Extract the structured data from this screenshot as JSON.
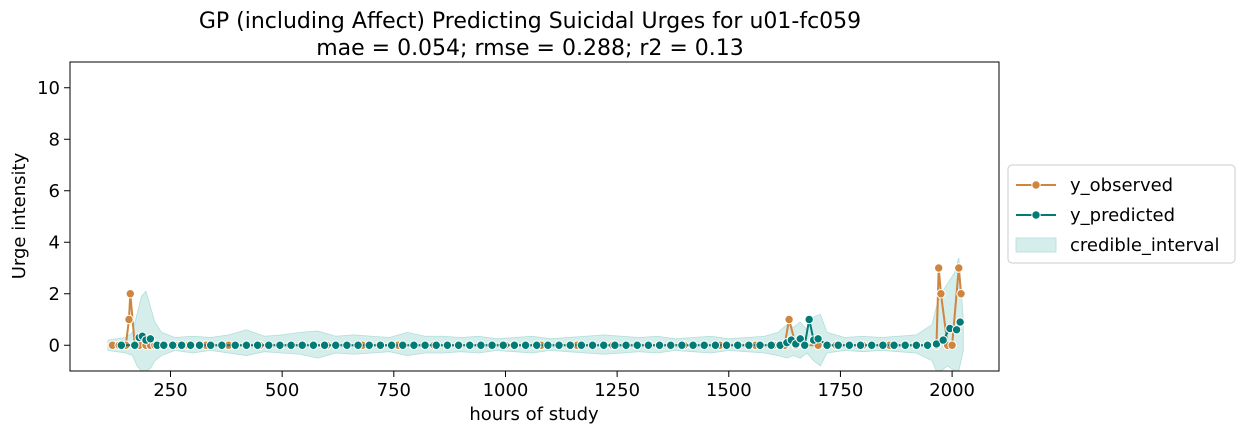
{
  "chart_data": {
    "type": "line",
    "title": "GP (including Affect) Predicting Suicidal Urges for u01-fc059",
    "subtitle": "mae = 0.054; rmse = 0.288; r2 = 0.13",
    "xlabel": "hours of study",
    "ylabel": "Urge intensity",
    "xlim": [
      25,
      2105
    ],
    "ylim": [
      -1,
      11
    ],
    "xticks": [
      250,
      500,
      750,
      1000,
      1250,
      1500,
      1750,
      2000
    ],
    "yticks": [
      0,
      2,
      4,
      6,
      8,
      10
    ],
    "grid": false,
    "legend_position": "right",
    "series": [
      {
        "name": "y_observed",
        "color": "#cd853f",
        "marker": "circle",
        "x": [
          120,
          135,
          150,
          157,
          160,
          170,
          180,
          195,
          205,
          215,
          230,
          260,
          290,
          330,
          380,
          450,
          520,
          600,
          680,
          760,
          840,
          920,
          1000,
          1080,
          1160,
          1240,
          1320,
          1400,
          1480,
          1560,
          1600,
          1625,
          1635,
          1650,
          1670,
          1700,
          1740,
          1800,
          1860,
          1920,
          1965,
          1970,
          1975,
          1990,
          2000,
          2015,
          2020
        ],
        "y": [
          0,
          0,
          0,
          1,
          2,
          0,
          0,
          0,
          0,
          0,
          0,
          0,
          0,
          0,
          0,
          0,
          0,
          0,
          0,
          0,
          0,
          0,
          0,
          0,
          0,
          0,
          0,
          0,
          0,
          0,
          0,
          0,
          1,
          0,
          0,
          0,
          0,
          0,
          0,
          0,
          0,
          3,
          2,
          0,
          0,
          3,
          2
        ]
      },
      {
        "name": "y_predicted",
        "color": "#007b76",
        "marker": "circle",
        "x": [
          140,
          170,
          180,
          187,
          195,
          205,
          220,
          235,
          255,
          275,
          295,
          315,
          340,
          365,
          395,
          420,
          445,
          470,
          495,
          520,
          545,
          570,
          595,
          620,
          645,
          670,
          695,
          720,
          745,
          770,
          795,
          820,
          845,
          870,
          895,
          920,
          945,
          970,
          995,
          1020,
          1045,
          1070,
          1095,
          1120,
          1145,
          1170,
          1195,
          1220,
          1245,
          1270,
          1295,
          1320,
          1345,
          1370,
          1395,
          1420,
          1445,
          1470,
          1495,
          1520,
          1545,
          1570,
          1595,
          1615,
          1630,
          1640,
          1650,
          1660,
          1670,
          1680,
          1690,
          1700,
          1720,
          1745,
          1770,
          1795,
          1820,
          1845,
          1870,
          1895,
          1920,
          1945,
          1965,
          1980,
          1995,
          2010,
          2018
        ],
        "y": [
          0,
          0,
          0.3,
          0.35,
          0.2,
          0.25,
          0,
          0,
          0,
          0,
          0,
          0,
          0,
          0,
          0,
          0,
          0,
          0,
          0,
          0,
          0,
          0,
          0,
          0,
          0,
          0,
          0,
          0,
          0,
          0,
          0,
          0,
          0,
          0,
          0,
          0,
          0,
          0,
          0,
          0,
          0,
          0,
          0,
          0,
          0,
          0,
          0,
          0,
          0,
          0,
          0,
          0,
          0,
          0,
          0,
          0,
          0,
          0,
          0,
          0,
          0,
          0,
          0,
          0,
          0.1,
          0.2,
          0.05,
          0.25,
          0,
          1,
          0.2,
          0.25,
          0,
          0,
          0,
          0,
          0,
          0,
          0,
          0,
          0,
          0,
          0.05,
          0.2,
          0.65,
          0.6,
          0.9
        ]
      },
      {
        "name": "credible_interval",
        "color": "#b2dfdb",
        "type": "band",
        "x": [
          110,
          150,
          165,
          175,
          185,
          195,
          205,
          215,
          230,
          260,
          300,
          340,
          380,
          420,
          460,
          500,
          540,
          580,
          620,
          660,
          700,
          740,
          780,
          820,
          860,
          900,
          940,
          980,
          1020,
          1060,
          1100,
          1140,
          1180,
          1220,
          1260,
          1300,
          1340,
          1380,
          1420,
          1460,
          1500,
          1540,
          1580,
          1610,
          1630,
          1645,
          1660,
          1675,
          1690,
          1705,
          1720,
          1760,
          1800,
          1840,
          1880,
          1920,
          1955,
          1965,
          1975,
          1990,
          2005,
          2015,
          2025
        ],
        "lower": [
          -0.2,
          -0.3,
          -0.4,
          -0.8,
          -1,
          -1,
          -0.9,
          -0.6,
          -0.4,
          -0.2,
          -0.3,
          -0.2,
          -0.3,
          -0.4,
          -0.25,
          -0.3,
          -0.35,
          -0.5,
          -0.3,
          -0.35,
          -0.3,
          -0.25,
          -0.4,
          -0.3,
          -0.3,
          -0.25,
          -0.3,
          -0.2,
          -0.25,
          -0.3,
          -0.2,
          -0.25,
          -0.3,
          -0.35,
          -0.3,
          -0.25,
          -0.3,
          -0.2,
          -0.25,
          -0.3,
          -0.2,
          -0.25,
          -0.3,
          -0.4,
          -0.5,
          -0.4,
          -0.5,
          -0.3,
          -0.6,
          -0.8,
          -0.3,
          -0.2,
          -0.25,
          -0.2,
          -0.25,
          -0.3,
          -0.6,
          -1,
          -1,
          -0.8,
          -1,
          -1,
          -0.2
        ],
        "upper": [
          0.2,
          0.3,
          0.5,
          1.2,
          1.9,
          2.1,
          1.5,
          0.9,
          0.5,
          0.3,
          0.35,
          0.3,
          0.4,
          0.6,
          0.35,
          0.4,
          0.5,
          0.55,
          0.35,
          0.4,
          0.35,
          0.3,
          0.5,
          0.35,
          0.35,
          0.3,
          0.35,
          0.25,
          0.3,
          0.35,
          0.25,
          0.3,
          0.35,
          0.4,
          0.35,
          0.3,
          0.35,
          0.25,
          0.3,
          0.35,
          0.25,
          0.3,
          0.35,
          0.5,
          0.8,
          0.7,
          0.9,
          0.6,
          1.1,
          1.2,
          0.5,
          0.3,
          0.35,
          0.3,
          0.35,
          0.4,
          0.8,
          1.5,
          2,
          2.4,
          2.8,
          3.4,
          1
        ]
      }
    ]
  }
}
